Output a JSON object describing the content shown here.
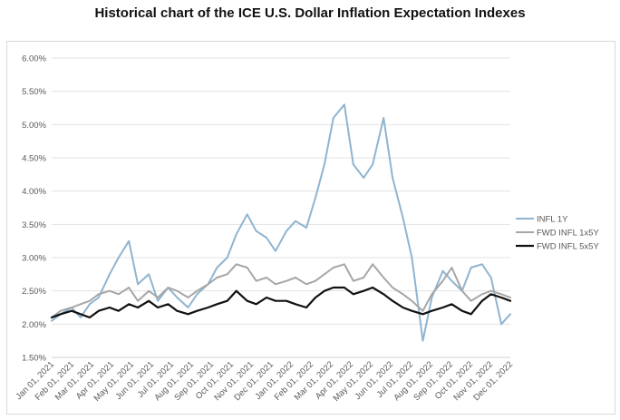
{
  "chart_data": {
    "type": "line",
    "title": "Historical chart of the ICE U.S. Dollar Inflation Expectation Indexes",
    "xlabel": "",
    "ylabel": "",
    "ylim": [
      0.015,
      0.06
    ],
    "yticks": [
      "1.50%",
      "2.00%",
      "2.50%",
      "3.00%",
      "3.50%",
      "4.00%",
      "4.50%",
      "5.00%",
      "5.50%",
      "6.00%"
    ],
    "ytick_values": [
      0.015,
      0.02,
      0.025,
      0.03,
      0.035,
      0.04,
      0.045,
      0.05,
      0.055,
      0.06
    ],
    "xticks": [
      "Jan 01, 2021",
      "Feb 01, 2021",
      "Mar 01, 2021",
      "Apr 01, 2021",
      "May 01, 2021",
      "Jun 01, 2021",
      "Jul 01, 2021",
      "Aug 01, 2021",
      "Sep 01, 2021",
      "Oct 01, 2021",
      "Nov 01, 2021",
      "Dec 01, 2021",
      "Jan 01, 2022",
      "Feb 01, 2022",
      "Mar 01, 2022",
      "Apr 01, 2022",
      "May 01, 2022",
      "Jun 01, 2022",
      "Jul 01, 2022",
      "Aug 01, 2022",
      "Sep 01, 2022",
      "Oct 01, 2022",
      "Nov 01, 2022",
      "Dec 01, 2022"
    ],
    "grid": true,
    "legend_position": "right",
    "x": [
      "2021-01-01",
      "2021-01-15",
      "2021-02-01",
      "2021-02-15",
      "2021-03-01",
      "2021-03-15",
      "2021-04-01",
      "2021-04-15",
      "2021-05-01",
      "2021-05-15",
      "2021-06-01",
      "2021-06-15",
      "2021-07-01",
      "2021-07-15",
      "2021-08-01",
      "2021-08-15",
      "2021-09-01",
      "2021-09-15",
      "2021-10-01",
      "2021-10-15",
      "2021-11-01",
      "2021-11-15",
      "2021-12-01",
      "2021-12-15",
      "2022-01-01",
      "2022-01-15",
      "2022-02-01",
      "2022-02-15",
      "2022-03-01",
      "2022-03-15",
      "2022-04-01",
      "2022-04-15",
      "2022-05-01",
      "2022-05-15",
      "2022-06-01",
      "2022-06-15",
      "2022-07-01",
      "2022-07-15",
      "2022-08-01",
      "2022-08-15",
      "2022-09-01",
      "2022-09-15",
      "2022-10-01",
      "2022-10-15",
      "2022-11-01",
      "2022-11-15",
      "2022-12-01",
      "2022-12-15"
    ],
    "series": [
      {
        "name": "INFL 1Y",
        "color": "#8fb4d0",
        "values": [
          0.0205,
          0.0215,
          0.0225,
          0.021,
          0.023,
          0.024,
          0.0275,
          0.03,
          0.0325,
          0.026,
          0.0275,
          0.0235,
          0.0255,
          0.024,
          0.0225,
          0.0245,
          0.026,
          0.0285,
          0.03,
          0.0335,
          0.0365,
          0.034,
          0.033,
          0.031,
          0.034,
          0.0355,
          0.0345,
          0.039,
          0.044,
          0.051,
          0.053,
          0.044,
          0.042,
          0.044,
          0.051,
          0.042,
          0.036,
          0.03,
          0.0175,
          0.024,
          0.028,
          0.0265,
          0.025,
          0.0285,
          0.029,
          0.027,
          0.02,
          0.0215
        ]
      },
      {
        "name": "FWD INFL 1x5Y",
        "color": "#a6a6a6",
        "values": [
          0.021,
          0.022,
          0.0225,
          0.023,
          0.0235,
          0.0245,
          0.025,
          0.0245,
          0.0255,
          0.0235,
          0.025,
          0.024,
          0.0255,
          0.025,
          0.024,
          0.025,
          0.026,
          0.027,
          0.0275,
          0.029,
          0.0285,
          0.0265,
          0.027,
          0.026,
          0.0265,
          0.027,
          0.026,
          0.0265,
          0.0275,
          0.0285,
          0.029,
          0.0265,
          0.027,
          0.029,
          0.027,
          0.0255,
          0.0245,
          0.0235,
          0.022,
          0.0245,
          0.0265,
          0.0285,
          0.025,
          0.0235,
          0.0245,
          0.025,
          0.0245,
          0.024
        ]
      },
      {
        "name": "FWD INFL 5x5Y",
        "color": "#111111",
        "values": [
          0.021,
          0.0215,
          0.022,
          0.0215,
          0.021,
          0.022,
          0.0225,
          0.022,
          0.023,
          0.0225,
          0.0235,
          0.0225,
          0.023,
          0.022,
          0.0215,
          0.022,
          0.0225,
          0.023,
          0.0235,
          0.025,
          0.0235,
          0.023,
          0.024,
          0.0235,
          0.0235,
          0.023,
          0.0225,
          0.024,
          0.025,
          0.0255,
          0.0255,
          0.0245,
          0.025,
          0.0255,
          0.0245,
          0.0235,
          0.0225,
          0.022,
          0.0215,
          0.022,
          0.0225,
          0.023,
          0.022,
          0.0215,
          0.0235,
          0.0245,
          0.024,
          0.0235
        ]
      }
    ]
  }
}
